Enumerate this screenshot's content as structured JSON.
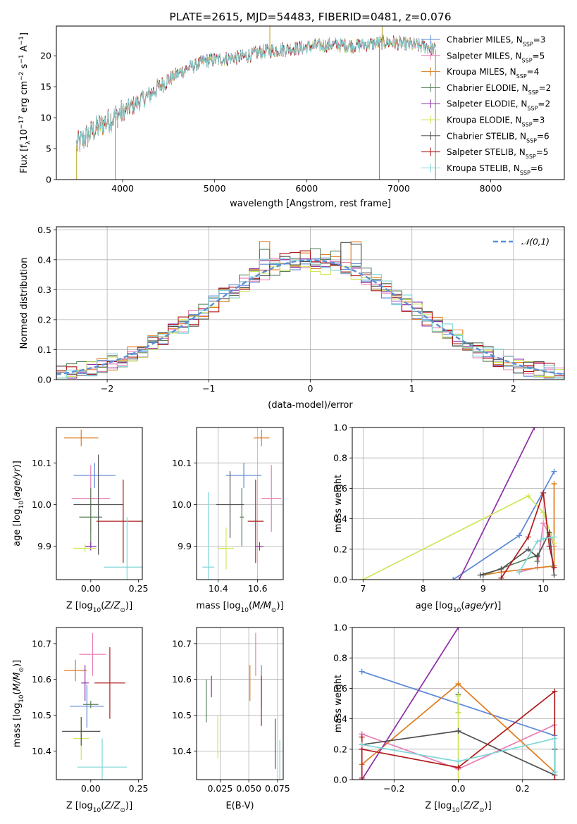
{
  "figure": {
    "title": "PLATE=2615, MJD=54483, FIBERID=0481, z=0.076"
  },
  "models": [
    {
      "label": "Chabrier MILES, N",
      "sub": "SSP",
      "suffix": "=3",
      "color": "#5b87d6"
    },
    {
      "label": "Salpeter MILES, N",
      "sub": "SSP",
      "suffix": "=5",
      "color": "#e87fb6"
    },
    {
      "label": "Kroupa MILES, N",
      "sub": "SSP",
      "suffix": "=4",
      "color": "#e07c1f"
    },
    {
      "label": "Chabrier ELODIE, N",
      "sub": "SSP",
      "suffix": "=2",
      "color": "#5a7f5a"
    },
    {
      "label": "Salpeter ELODIE, N",
      "sub": "SSP",
      "suffix": "=2",
      "color": "#8e2ea8"
    },
    {
      "label": "Kroupa ELODIE, N",
      "sub": "SSP",
      "suffix": "=3",
      "color": "#cfe65a"
    },
    {
      "label": "Chabrier STELIB, N",
      "sub": "SSP",
      "suffix": "=6",
      "color": "#505050"
    },
    {
      "label": "Salpeter STELIB, N",
      "sub": "SSP",
      "suffix": "=5",
      "color": "#b01c1c"
    },
    {
      "label": "Kroupa STELIB, N",
      "sub": "SSP",
      "suffix": "=6",
      "color": "#7fd6d8"
    }
  ],
  "chart_data": [
    {
      "id": "spectrum",
      "type": "line",
      "title": "PLATE=2615, MJD=54483, FIBERID=0481, z=0.076",
      "xlabel": "wavelength [Angstrom, rest frame]",
      "ylabel": "Flux [f_λ 10^-17 erg cm^-2 s^-1 A^-1]",
      "xlim": [
        3280,
        8800
      ],
      "ylim": [
        0,
        24.8
      ],
      "xticks": [
        4000,
        5000,
        6000,
        7000,
        8000
      ],
      "yticks": [
        0,
        5,
        10,
        15,
        20
      ],
      "grid": false,
      "legend": "right",
      "continuum": {
        "x": [
          3500,
          3650,
          3800,
          3950,
          4100,
          4300,
          4500,
          4700,
          4900,
          5100,
          5300,
          5500,
          5700,
          5900,
          6100,
          6300,
          6500,
          6700,
          6900,
          7100,
          7300,
          7400
        ],
        "y": [
          5.5,
          7.5,
          9.2,
          10.5,
          11.8,
          13.8,
          16.2,
          17.9,
          19.2,
          19.5,
          19.8,
          20.6,
          21.0,
          21.2,
          21.6,
          21.8,
          21.6,
          21.9,
          22.2,
          21.8,
          21.5,
          21.0
        ]
      },
      "noise_amplitude": 1.0,
      "spikes": [
        {
          "x": 3500,
          "y": 0
        },
        {
          "x": 3920,
          "y": 0
        },
        {
          "x": 5600,
          "y": 24.8
        },
        {
          "x": 6790,
          "y": 0
        },
        {
          "x": 6820,
          "y": 24.8
        },
        {
          "x": 7400,
          "y": 0
        }
      ]
    },
    {
      "id": "residuals",
      "type": "histogram",
      "xlabel": "(data-model)/error",
      "ylabel": "Normed distribution",
      "xlim": [
        -2.5,
        2.5
      ],
      "ylim": [
        0,
        0.51
      ],
      "xticks": [
        -2,
        -1,
        0,
        1,
        2
      ],
      "yticks": [
        0.0,
        0.1,
        0.2,
        0.3,
        0.4,
        0.5
      ],
      "grid": true,
      "legend": "top-right",
      "legend_label": "𝒩(0,1)",
      "bin_width": 0.1,
      "peak_values": [
        0.39,
        0.42,
        0.485,
        0.44,
        0.4,
        0.38,
        0.47,
        0.45,
        0.41
      ]
    },
    {
      "id": "age-vs-Z",
      "type": "errorbar",
      "xlabel": "Z [log10(Z/Z⊙)]",
      "ylabel": "age [log10(age/yr)]",
      "xlim": [
        -0.18,
        0.27
      ],
      "ylim": [
        9.82,
        10.185
      ],
      "xticks": [
        0.0,
        0.25
      ],
      "yticks": [
        9.9,
        10.0,
        10.1
      ],
      "grid": false,
      "points": [
        {
          "x": 0.02,
          "y": 10.07,
          "xerr": 0.11,
          "yerr": 0.03
        },
        {
          "x": 0.0,
          "y": 10.015,
          "xerr": 0.1,
          "yerr": 0.08
        },
        {
          "x": -0.05,
          "y": 10.16,
          "xerr": 0.09,
          "yerr": 0.02
        },
        {
          "x": 0.0,
          "y": 9.97,
          "xerr": 0.06,
          "yerr": 0.07
        },
        {
          "x": 0.0,
          "y": 9.9,
          "xerr": 0.03,
          "yerr": 0.01
        },
        {
          "x": -0.03,
          "y": 9.895,
          "xerr": 0.06,
          "yerr": 0.01
        },
        {
          "x": 0.04,
          "y": 10.0,
          "xerr": 0.13,
          "yerr": 0.12
        },
        {
          "x": 0.17,
          "y": 9.96,
          "xerr": 0.14,
          "yerr": 0.1
        },
        {
          "x": 0.19,
          "y": 9.85,
          "xerr": 0.12,
          "yerr": 0.12
        }
      ]
    },
    {
      "id": "age-vs-mass",
      "type": "errorbar",
      "xlabel": "mass [log10(M/M⊙)]",
      "ylabel": "",
      "xlim": [
        10.29,
        10.73
      ],
      "ylim": [
        9.82,
        10.185
      ],
      "xticks": [
        10.4,
        10.6
      ],
      "yticks": [
        9.9,
        10.0,
        10.1
      ],
      "grid": true,
      "points": [
        {
          "x": 10.53,
          "y": 10.07,
          "xerr": 0.09,
          "yerr": 0.03
        },
        {
          "x": 10.67,
          "y": 10.015,
          "xerr": 0.05,
          "yerr": 0.08
        },
        {
          "x": 10.62,
          "y": 10.16,
          "xerr": 0.04,
          "yerr": 0.02
        },
        {
          "x": 10.52,
          "y": 9.97,
          "xerr": 0.01,
          "yerr": 0.07
        },
        {
          "x": 10.61,
          "y": 9.9,
          "xerr": 0.02,
          "yerr": 0.01
        },
        {
          "x": 10.44,
          "y": 9.895,
          "xerr": 0.04,
          "yerr": 0.05
        },
        {
          "x": 10.46,
          "y": 10.0,
          "xerr": 0.07,
          "yerr": 0.08
        },
        {
          "x": 10.59,
          "y": 9.96,
          "xerr": 0.04,
          "yerr": 0.1
        },
        {
          "x": 10.35,
          "y": 9.85,
          "xerr": 0.03,
          "yerr": 0.18
        }
      ]
    },
    {
      "id": "weight-vs-age",
      "type": "line",
      "xlabel": "age [log10(age/yr)]",
      "ylabel": "mass weight",
      "xlim": [
        6.82,
        10.35
      ],
      "ylim": [
        0,
        1.0
      ],
      "xticks": [
        7,
        8,
        9,
        10
      ],
      "yticks": [
        0.0,
        0.2,
        0.4,
        0.6,
        0.8,
        1.0
      ],
      "grid": true,
      "series": [
        {
          "x": [
            8.5,
            9.6,
            10.18
          ],
          "y": [
            0.0,
            0.29,
            0.71
          ]
        },
        {
          "x": [
            9.6,
            9.9,
            10.0,
            10.1,
            10.18
          ],
          "y": [
            0.05,
            0.08,
            0.37,
            0.3,
            0.22
          ]
        },
        {
          "x": [
            9.0,
            9.3,
            10.18,
            10.18
          ],
          "y": [
            0.03,
            0.05,
            0.09,
            0.63
          ]
        },
        {
          "x": [
            9.0,
            9.9,
            9.9
          ],
          "y": [
            0.03,
            0.16,
            0.12
          ]
        },
        {
          "x": [
            8.6,
            9.85
          ],
          "y": [
            0.0,
            1.0
          ]
        },
        {
          "x": [
            7.0,
            9.75,
            10.0,
            10.18
          ],
          "y": [
            0.0,
            0.55,
            0.44,
            0.24
          ]
        },
        {
          "x": [
            8.95,
            9.3,
            9.75,
            9.9,
            10.1,
            10.18
          ],
          "y": [
            0.03,
            0.07,
            0.2,
            0.15,
            0.31,
            0.03
          ]
        },
        {
          "x": [
            9.3,
            9.75,
            10.0,
            10.1,
            10.18
          ],
          "y": [
            0.01,
            0.28,
            0.57,
            0.22,
            0.08
          ]
        },
        {
          "x": [
            9.6,
            9.9,
            10.0,
            10.18
          ],
          "y": [
            0.05,
            0.25,
            0.27,
            0.28
          ]
        }
      ]
    },
    {
      "id": "mass-vs-Z",
      "type": "errorbar",
      "xlabel": "Z [log10(Z/Z⊙)]",
      "ylabel": "mass [log10(M/M⊙)]",
      "xlim": [
        -0.18,
        0.27
      ],
      "ylim": [
        10.32,
        10.745
      ],
      "xticks": [
        0.0,
        0.25
      ],
      "yticks": [
        10.4,
        10.5,
        10.6,
        10.7
      ],
      "grid": false,
      "points": [
        {
          "x": -0.02,
          "y": 10.525,
          "xerr": 0.09,
          "yerr": 0.06
        },
        {
          "x": 0.01,
          "y": 10.67,
          "xerr": 0.07,
          "yerr": 0.06
        },
        {
          "x": -0.08,
          "y": 10.625,
          "xerr": 0.06,
          "yerr": 0.03
        },
        {
          "x": 0.0,
          "y": 10.53,
          "xerr": 0.04,
          "yerr": 0.01
        },
        {
          "x": -0.03,
          "y": 10.59,
          "xerr": 0.02,
          "yerr": 0.05
        },
        {
          "x": -0.05,
          "y": 10.435,
          "xerr": 0.04,
          "yerr": 0.06
        },
        {
          "x": -0.05,
          "y": 10.455,
          "xerr": 0.1,
          "yerr": 0.04
        },
        {
          "x": 0.1,
          "y": 10.59,
          "xerr": 0.08,
          "yerr": 0.1
        },
        {
          "x": 0.06,
          "y": 10.355,
          "xerr": 0.13,
          "yerr": 0.08
        }
      ]
    },
    {
      "id": "mass-vs-EBV",
      "type": "errorbar",
      "xlabel": "E(B-V)",
      "ylabel": "",
      "xlim": [
        0.0045,
        0.08
      ],
      "ylim": [
        10.32,
        10.745
      ],
      "xticks": [
        0.025,
        0.05,
        0.075
      ],
      "yticks": [
        10.4,
        10.5,
        10.6,
        10.7
      ],
      "grid": true,
      "points": [
        {
          "x": 0.061,
          "y": 10.58,
          "xerr": 0.0,
          "yerr": 0.06
        },
        {
          "x": 0.056,
          "y": 10.67,
          "xerr": 0.0,
          "yerr": 0.06
        },
        {
          "x": 0.051,
          "y": 10.59,
          "xerr": 0.0,
          "yerr": 0.05
        },
        {
          "x": 0.013,
          "y": 10.54,
          "xerr": 0.0,
          "yerr": 0.06
        },
        {
          "x": 0.0175,
          "y": 10.58,
          "xerr": 0.0,
          "yerr": 0.03
        },
        {
          "x": 0.023,
          "y": 10.44,
          "xerr": 0.0,
          "yerr": 0.06
        },
        {
          "x": 0.073,
          "y": 10.42,
          "xerr": 0.0,
          "yerr": 0.07
        },
        {
          "x": 0.061,
          "y": 10.54,
          "xerr": 0.0,
          "yerr": 0.07
        },
        {
          "x": 0.077,
          "y": 10.37,
          "xerr": 0.0,
          "yerr": 0.06
        }
      ]
    },
    {
      "id": "weight-vs-Z",
      "type": "line",
      "xlabel": "Z [log10(Z/Z⊙)]",
      "ylabel": "mass weight",
      "xlim": [
        -0.33,
        0.33
      ],
      "ylim": [
        0,
        1.0
      ],
      "xticks": [
        -0.2,
        0.0,
        0.2
      ],
      "yticks": [
        0.0,
        0.2,
        0.4,
        0.6,
        0.8,
        1.0
      ],
      "grid": true,
      "series": [
        {
          "x": [
            -0.3,
            0.3
          ],
          "y": [
            0.71,
            0.29
          ]
        },
        {
          "x": [
            -0.3,
            -0.3,
            0.0,
            0.3,
            0.3
          ],
          "y": [
            0.3,
            0.3,
            0.07,
            0.36,
            0.2
          ]
        },
        {
          "x": [
            -0.3,
            0.0,
            0.3,
            0.3
          ],
          "y": [
            0.1,
            0.63,
            0.05,
            0.05
          ]
        },
        {
          "x": [
            0.0,
            0.0
          ],
          "y": [
            0.56,
            0.44
          ]
        },
        {
          "x": [
            -0.3,
            0.0
          ],
          "y": [
            0.0,
            1.0
          ]
        },
        {
          "x": [
            0.0,
            0.0,
            0.0
          ],
          "y": [
            0.0,
            0.55,
            0.44
          ]
        },
        {
          "x": [
            -0.3,
            0.0,
            0.3,
            0.3
          ],
          "y": [
            0.23,
            0.32,
            0.03,
            0.2
          ]
        },
        {
          "x": [
            -0.3,
            -0.3,
            -0.3,
            0.0,
            0.3,
            0.3
          ],
          "y": [
            0.01,
            0.28,
            0.2,
            0.08,
            0.58,
            0.0
          ]
        },
        {
          "x": [
            -0.3,
            0.0,
            0.3,
            0.3
          ],
          "y": [
            0.23,
            0.12,
            0.27,
            0.05
          ]
        }
      ]
    }
  ]
}
